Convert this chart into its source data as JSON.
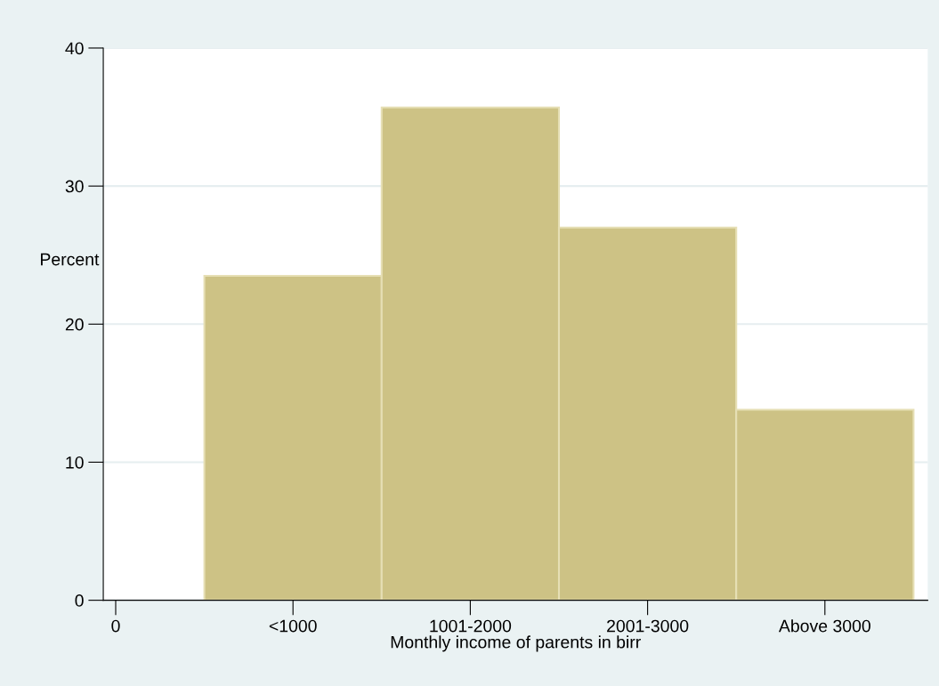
{
  "chart_data": {
    "type": "bar",
    "xlabel": "Monthly income of parents in birr",
    "ylabel": "Percent",
    "categories": [
      "0",
      "<1000",
      "1001-2000",
      "2001-3000",
      "Above 3000"
    ],
    "values": [
      null,
      23.5,
      35.7,
      27.0,
      13.8
    ],
    "color": "#cdc285",
    "ylim": [
      0,
      40
    ],
    "yticks": [
      0,
      10,
      20,
      30,
      40
    ],
    "grid": "y"
  }
}
